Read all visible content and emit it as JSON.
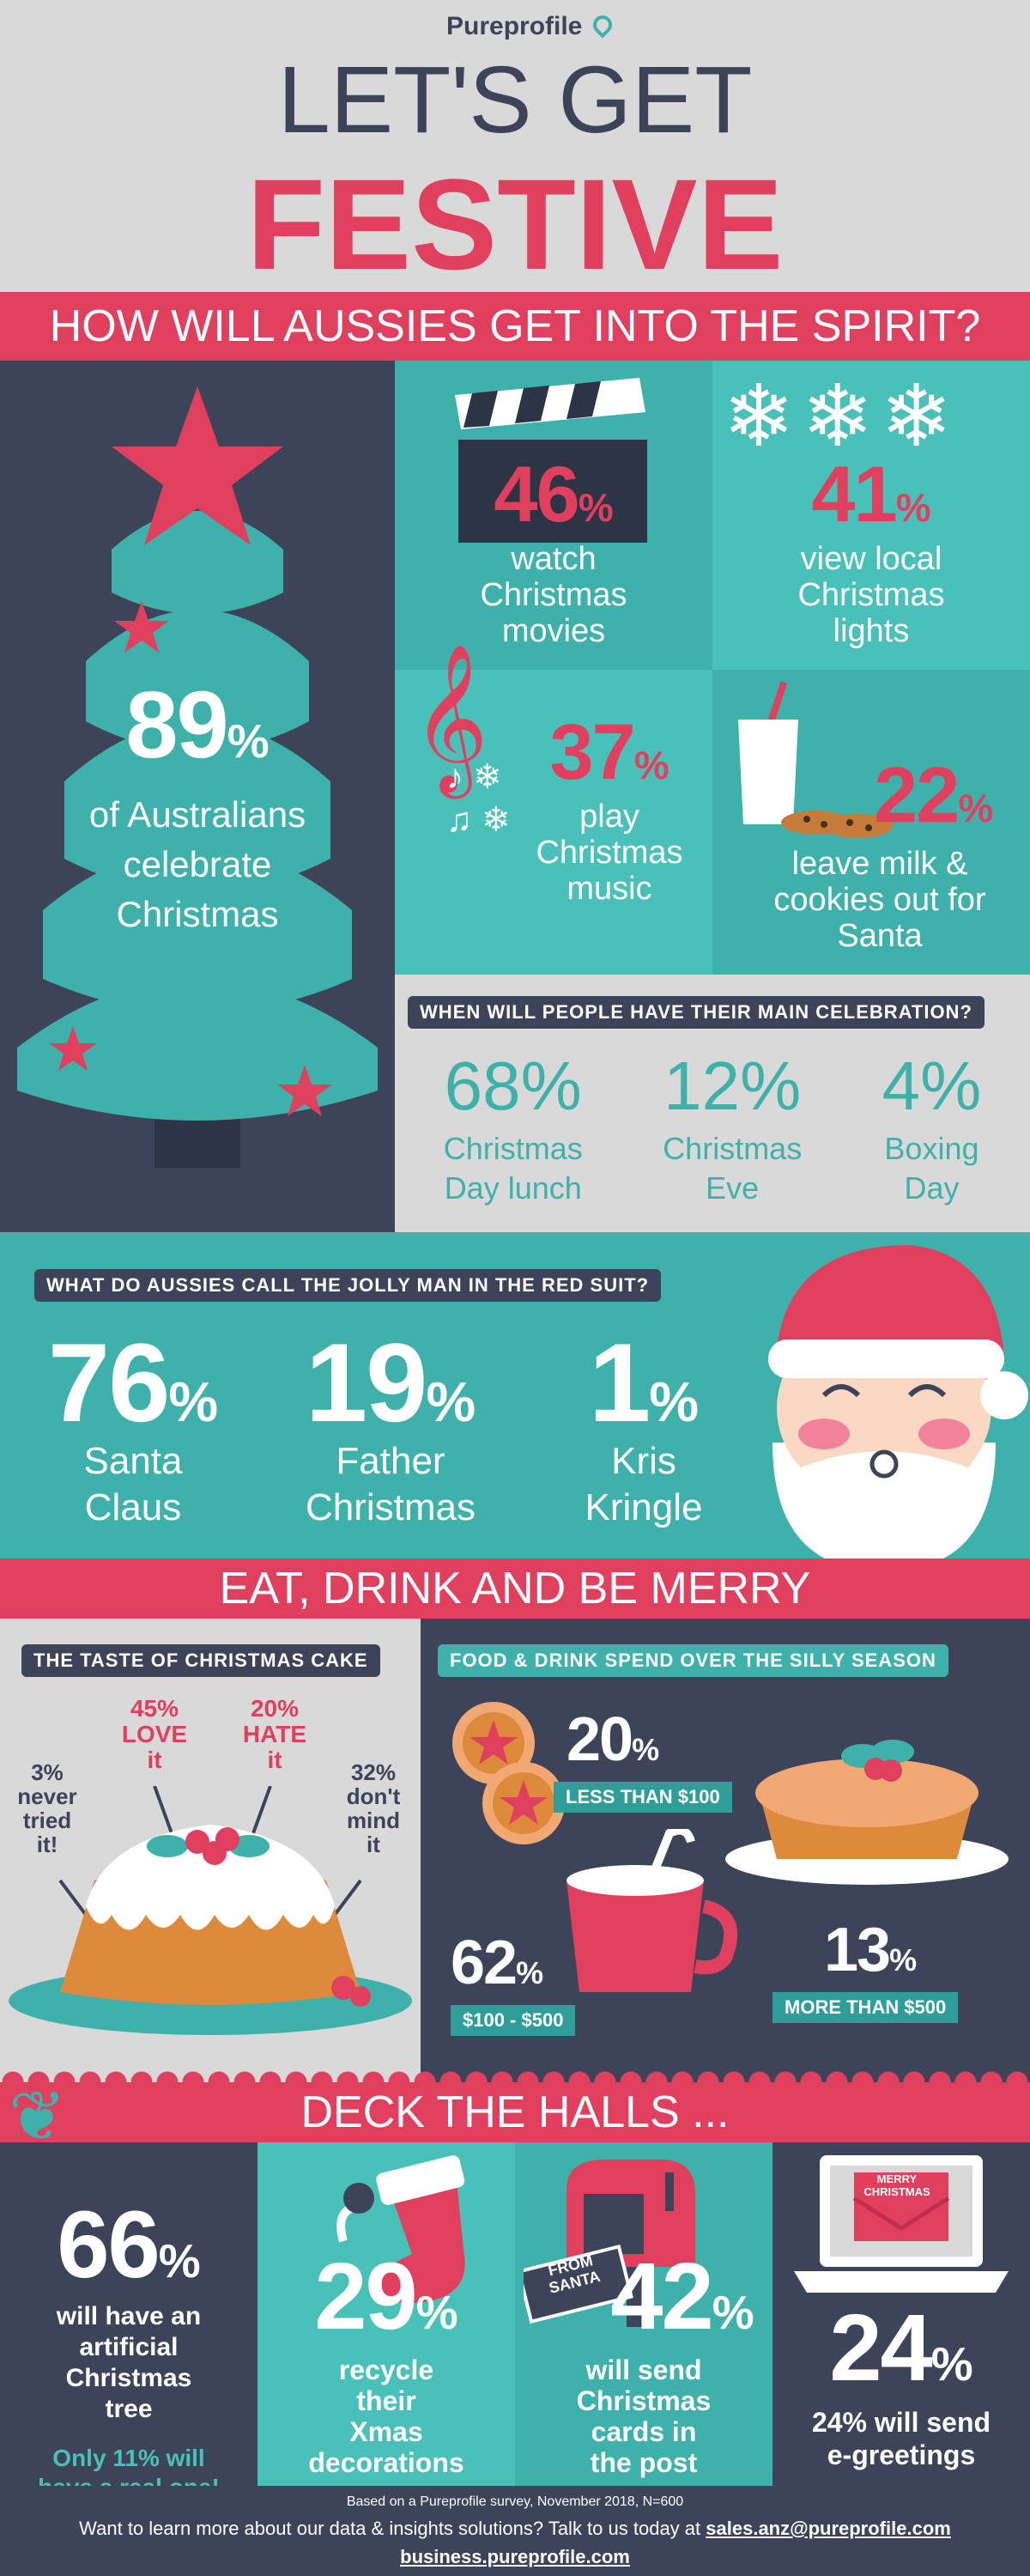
{
  "brand": {
    "name": "Pureprofile"
  },
  "header": {
    "line1": "LET'S GET",
    "line2": "FESTIVE"
  },
  "spirit": {
    "banner": "HOW WILL AUSSIES GET INTO THE SPIRIT?",
    "tree_pct": "89",
    "tree_text": "of Australians celebrate Christmas",
    "movies_pct": "46",
    "movies_text": "watch Christmas movies",
    "lights_pct": "41",
    "lights_text": "view local Christmas lights",
    "music_pct": "37",
    "music_text": "play Christmas music",
    "milk_pct": "22",
    "milk_text": "leave milk & cookies out for Santa"
  },
  "celebration": {
    "title": "WHEN WILL PEOPLE HAVE THEIR MAIN CELEBRATION?",
    "items": [
      {
        "pct": "68%",
        "label1": "Christmas",
        "label2": "Day lunch"
      },
      {
        "pct": "12%",
        "label1": "Christmas",
        "label2": "Eve"
      },
      {
        "pct": "4%",
        "label1": "Boxing",
        "label2": "Day"
      }
    ]
  },
  "jolly": {
    "title": "WHAT DO AUSSIES CALL THE JOLLY MAN IN THE RED SUIT?",
    "items": [
      {
        "pct": "76",
        "label1": "Santa",
        "label2": "Claus"
      },
      {
        "pct": "19",
        "label1": "Father",
        "label2": "Christmas"
      },
      {
        "pct": "1",
        "label1": "Kris",
        "label2": "Kringle"
      }
    ]
  },
  "eat": {
    "banner": "EAT, DRINK AND BE MERRY",
    "cake_title": "THE TASTE OF CHRISTMAS CAKE",
    "cake": {
      "never_pct": "3%",
      "never_l1": "never",
      "never_l2": "tried",
      "never_l3": "it!",
      "love_pct": "45%",
      "love_l1": "LOVE",
      "love_l2": "it",
      "hate_pct": "20%",
      "hate_l1": "HATE",
      "hate_l2": "it",
      "mind_pct": "32%",
      "mind_l1": "don't",
      "mind_l2": "mind",
      "mind_l3": "it"
    },
    "spend_title": "FOOD & DRINK SPEND OVER THE SILLY SEASON",
    "spend": [
      {
        "pct": "20",
        "label": "LESS THAN $100"
      },
      {
        "pct": "62",
        "label": "$100 - $500"
      },
      {
        "pct": "13",
        "label": "MORE THAN $500"
      }
    ]
  },
  "deck": {
    "banner": "DECK THE HALLS ...",
    "tree_pct": "66",
    "tree_l1": "will have an",
    "tree_l2": "artificial",
    "tree_l3": "Christmas",
    "tree_l4": "tree",
    "real_l1": "Only 11% will",
    "real_l2": "have a real one!",
    "recycle_pct": "29",
    "recycle_l1": "recycle",
    "recycle_l2": "their",
    "recycle_l3": "Xmas",
    "recycle_l4": "decorations",
    "cards_pct": "42",
    "cards_l1": "will send",
    "cards_l2": "Christmas",
    "cards_l3": "cards in",
    "cards_l4": "the post",
    "egreet_pct": "24",
    "egreet_l1": "24% will send",
    "egreet_l2": "e-greetings",
    "mail_label_1": "FROM",
    "mail_label_2": "SANTA",
    "laptop_label": "MERRY CHRISTMAS"
  },
  "footer": {
    "survey": "Based on a Pureprofile survey, November 2018, N=600",
    "cta": "Want to learn more about our data & insights solutions? Talk to us today at",
    "email": "sales.anz@pureprofile.com",
    "url": "business.pureprofile.com"
  },
  "colors": {
    "pink": "#e0405d",
    "teal": "#3fb1ab",
    "navy": "#3d4459",
    "grey": "#d9d9d9"
  }
}
